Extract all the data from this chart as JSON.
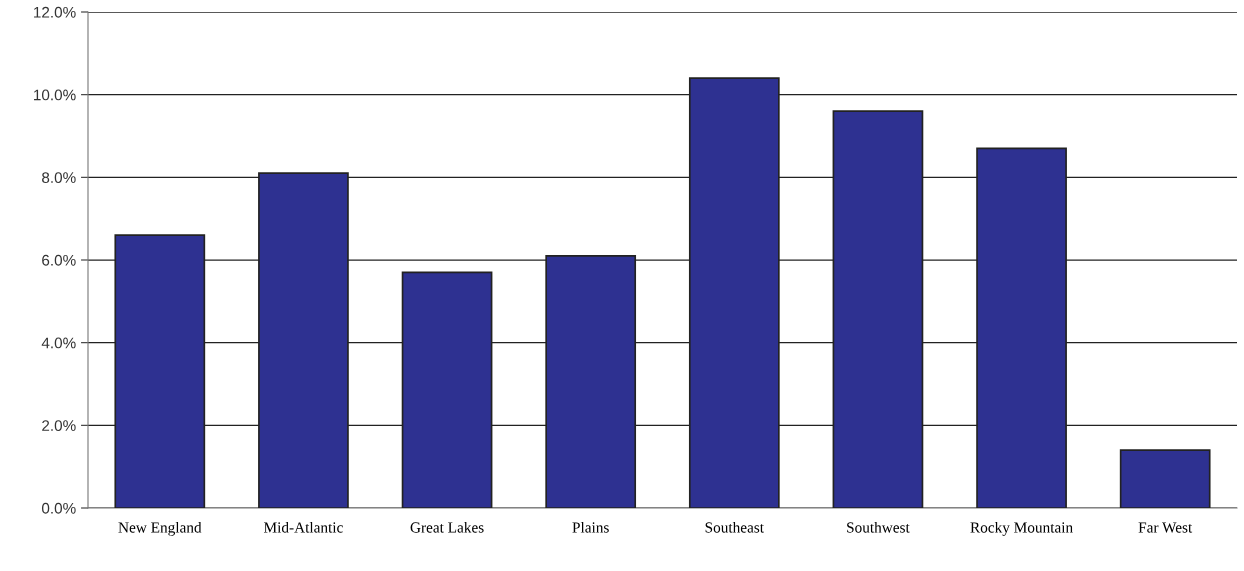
{
  "chart_data": {
    "type": "bar",
    "categories": [
      "New England",
      "Mid-Atlantic",
      "Great Lakes",
      "Plains",
      "Southeast",
      "Southwest",
      "Rocky Mountain",
      "Far West"
    ],
    "values": [
      6.6,
      8.1,
      5.7,
      6.1,
      10.4,
      9.6,
      8.7,
      1.4
    ],
    "color": "#2e3191",
    "ylim": [
      0,
      12
    ],
    "yticks": [
      {
        "value": 0,
        "label": "0.0%"
      },
      {
        "value": 2,
        "label": "2.0%"
      },
      {
        "value": 4,
        "label": "4.0%"
      },
      {
        "value": 6,
        "label": "6.0%"
      },
      {
        "value": 8,
        "label": "8.0%"
      },
      {
        "value": 10,
        "label": "10.0%"
      },
      {
        "value": 12,
        "label": "12.0%"
      }
    ],
    "grid": "y"
  }
}
